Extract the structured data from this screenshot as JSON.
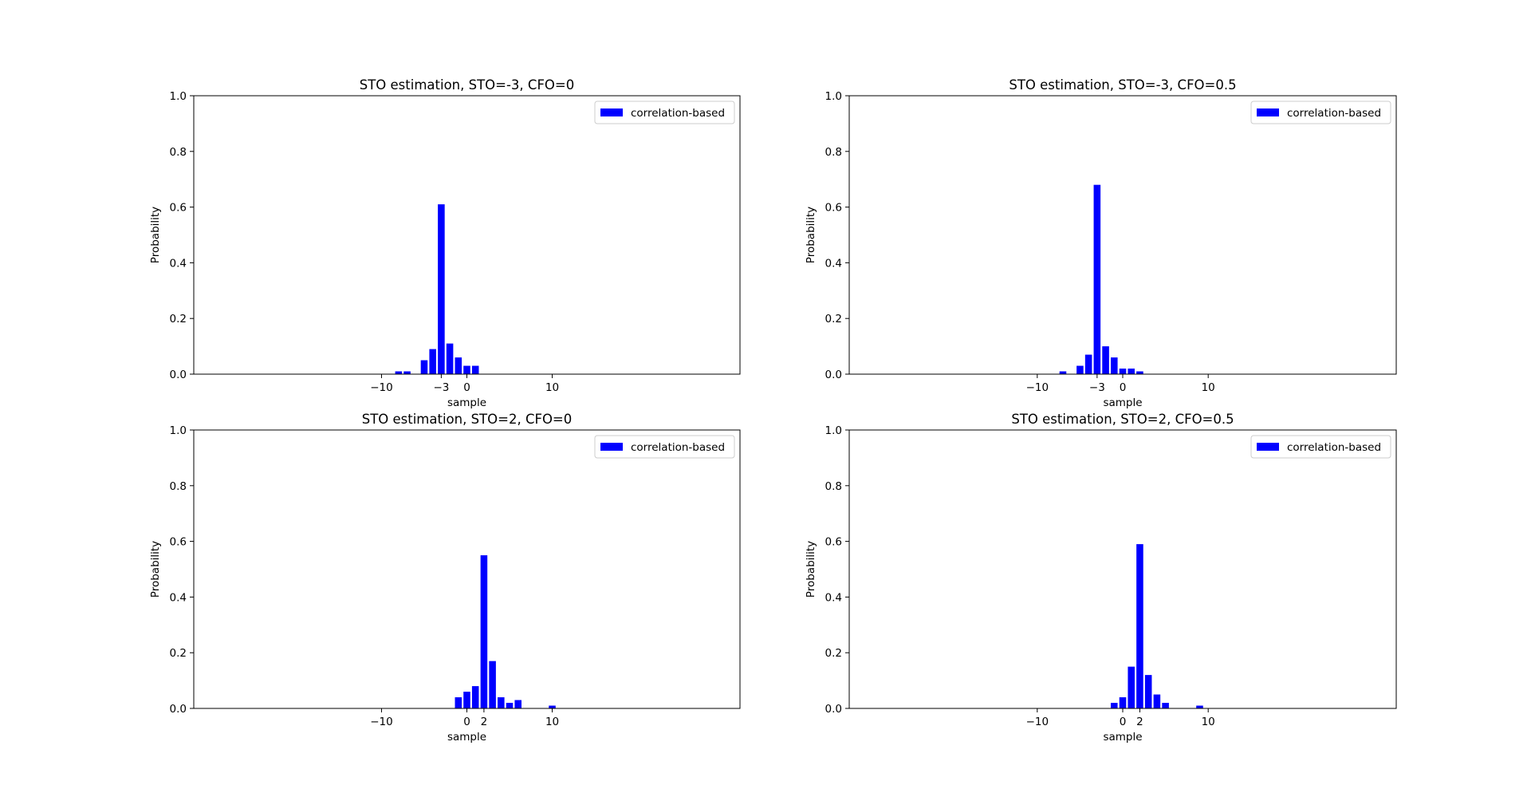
{
  "figure": {
    "background": "#ffffff"
  },
  "chart_data": [
    {
      "type": "bar",
      "title": "STO estimation, STO=-3, CFO=0",
      "xlabel": "sample",
      "ylabel": "Probability",
      "xlim": [
        -32,
        32
      ],
      "ylim": [
        0,
        1
      ],
      "xticks": [
        -10,
        -3,
        0,
        10
      ],
      "xtick_labels": [
        "−10",
        "−3",
        "0",
        "10"
      ],
      "yticks": [
        0,
        0.2,
        0.4,
        0.6,
        0.8,
        1
      ],
      "ytick_labels": [
        "0.0",
        "0.2",
        "0.4",
        "0.6",
        "0.8",
        "1.0"
      ],
      "grid": false,
      "legend": {
        "position": "top-right",
        "entries": [
          "correlation-based"
        ]
      },
      "color": "#0000ff",
      "x": [
        -8,
        -7,
        -5,
        -4,
        -3,
        -2,
        -1,
        0,
        1
      ],
      "values": [
        0.01,
        0.01,
        0.05,
        0.09,
        0.61,
        0.11,
        0.06,
        0.03,
        0.03
      ]
    },
    {
      "type": "bar",
      "title": "STO estimation, STO=-3, CFO=0.5",
      "xlabel": "sample",
      "ylabel": "Probability",
      "xlim": [
        -32,
        32
      ],
      "ylim": [
        0,
        1
      ],
      "xticks": [
        -10,
        -3,
        0,
        10
      ],
      "xtick_labels": [
        "−10",
        "−3",
        "0",
        "10"
      ],
      "yticks": [
        0,
        0.2,
        0.4,
        0.6,
        0.8,
        1
      ],
      "ytick_labels": [
        "0.0",
        "0.2",
        "0.4",
        "0.6",
        "0.8",
        "1.0"
      ],
      "grid": false,
      "legend": {
        "position": "top-right",
        "entries": [
          "correlation-based"
        ]
      },
      "color": "#0000ff",
      "x": [
        -7,
        -5,
        -4,
        -3,
        -2,
        -1,
        0,
        1,
        2
      ],
      "values": [
        0.01,
        0.03,
        0.07,
        0.68,
        0.1,
        0.06,
        0.02,
        0.02,
        0.01
      ]
    },
    {
      "type": "bar",
      "title": "STO estimation, STO=2, CFO=0",
      "xlabel": "sample",
      "ylabel": "Probability",
      "xlim": [
        -32,
        32
      ],
      "ylim": [
        0,
        1
      ],
      "xticks": [
        -10,
        0,
        2,
        10
      ],
      "xtick_labels": [
        "−10",
        "0",
        "2",
        "10"
      ],
      "yticks": [
        0,
        0.2,
        0.4,
        0.6,
        0.8,
        1
      ],
      "ytick_labels": [
        "0.0",
        "0.2",
        "0.4",
        "0.6",
        "0.8",
        "1.0"
      ],
      "grid": false,
      "legend": {
        "position": "top-right",
        "entries": [
          "correlation-based"
        ]
      },
      "color": "#0000ff",
      "x": [
        -1,
        0,
        1,
        2,
        3,
        4,
        5,
        6,
        10
      ],
      "values": [
        0.04,
        0.06,
        0.08,
        0.55,
        0.17,
        0.04,
        0.02,
        0.03,
        0.01
      ]
    },
    {
      "type": "bar",
      "title": "STO estimation, STO=2, CFO=0.5",
      "xlabel": "sample",
      "ylabel": "Probability",
      "xlim": [
        -32,
        32
      ],
      "ylim": [
        0,
        1
      ],
      "xticks": [
        -10,
        0,
        2,
        10
      ],
      "xtick_labels": [
        "−10",
        "0",
        "2",
        "10"
      ],
      "yticks": [
        0,
        0.2,
        0.4,
        0.6,
        0.8,
        1
      ],
      "ytick_labels": [
        "0.0",
        "0.2",
        "0.4",
        "0.6",
        "0.8",
        "1.0"
      ],
      "grid": false,
      "legend": {
        "position": "top-right",
        "entries": [
          "correlation-based"
        ]
      },
      "color": "#0000ff",
      "x": [
        -1,
        0,
        1,
        2,
        3,
        4,
        5,
        9
      ],
      "values": [
        0.02,
        0.04,
        0.15,
        0.59,
        0.12,
        0.05,
        0.02,
        0.01
      ]
    }
  ]
}
